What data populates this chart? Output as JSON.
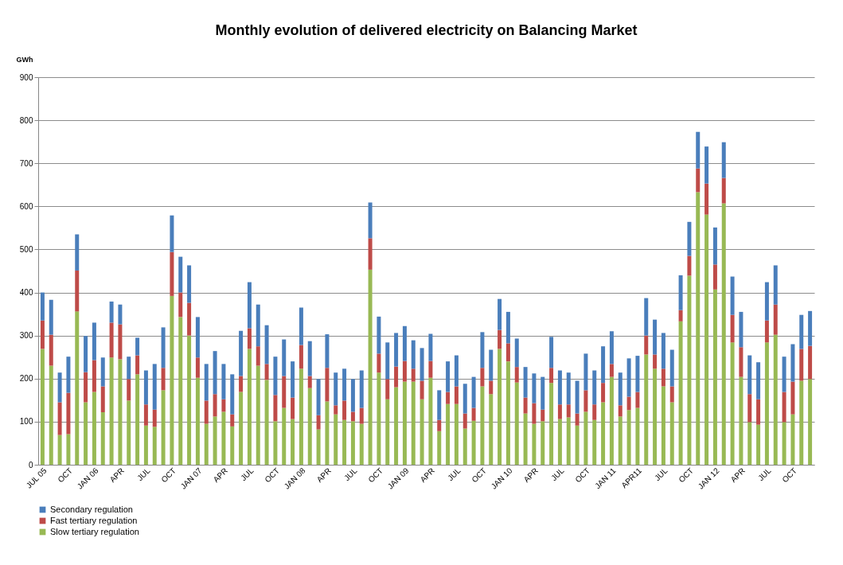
{
  "chart_data": {
    "type": "bar",
    "title": "Monthly evolution of delivered electricity on Balancing Market",
    "ylabel": "GWh",
    "stacked": true,
    "grid": "y",
    "legend": "bottom",
    "ylim": [
      0,
      900
    ],
    "yticks": [
      0,
      100,
      200,
      300,
      400,
      500,
      600,
      700,
      800,
      900
    ],
    "categories": [
      "JUL 05",
      null,
      null,
      "OCT",
      null,
      null,
      "JAN 06",
      null,
      null,
      "APR",
      null,
      null,
      "JUL",
      null,
      null,
      "OCT",
      null,
      null,
      "JAN 07",
      null,
      null,
      "APR",
      null,
      null,
      "JUL",
      null,
      null,
      "OCT",
      null,
      null,
      "JAN 08",
      null,
      null,
      "APR",
      null,
      null,
      "JUL",
      null,
      null,
      "OCT",
      null,
      null,
      "JAN 09",
      null,
      null,
      "APR",
      null,
      null,
      "JUL",
      null,
      null,
      "OCT",
      null,
      null,
      "JAN 10",
      null,
      null,
      "APR",
      null,
      null,
      "JUL",
      null,
      null,
      "OCT",
      null,
      null,
      "JAN 11",
      null,
      null,
      "APR11",
      null,
      null,
      "JUL",
      null,
      null,
      "OCT",
      null,
      null,
      "JAN 12",
      null,
      null,
      "APR",
      null,
      null,
      "JUL",
      null,
      null,
      "OCT",
      null,
      null
    ],
    "series": [
      {
        "name": "Slow tertiary regulation",
        "color": "#98b954",
        "values": [
          269,
          230,
          69,
          71,
          356,
          145,
          169,
          122,
          249,
          245,
          149,
          210,
          91,
          88,
          173,
          392,
          343,
          300,
          202,
          95,
          112,
          123,
          89,
          169,
          269,
          230,
          197,
          101,
          132,
          106,
          223,
          178,
          82,
          147,
          117,
          104,
          101,
          95,
          453,
          214,
          152,
          180,
          193,
          193,
          152,
          202,
          78,
          141,
          141,
          84,
          102,
          182,
          164,
          269,
          240,
          191,
          119,
          95,
          101,
          190,
          106,
          110,
          91,
          123,
          104,
          145,
          204,
          112,
          127,
          132,
          256,
          223,
          182,
          145,
          333,
          439,
          633,
          581,
          407,
          607,
          284,
          204,
          99,
          93,
          284,
          302,
          99,
          117,
          195,
          199
        ]
      },
      {
        "name": "Fast tertiary regulation",
        "color": "#be4b48",
        "values": [
          66,
          72,
          76,
          96,
          95,
          70,
          74,
          60,
          81,
          81,
          50,
          44,
          49,
          40,
          52,
          102,
          57,
          76,
          47,
          54,
          52,
          29,
          28,
          37,
          48,
          45,
          37,
          61,
          74,
          50,
          55,
          28,
          33,
          78,
          21,
          45,
          22,
          37,
          73,
          44,
          47,
          48,
          48,
          30,
          43,
          39,
          26,
          28,
          41,
          35,
          30,
          43,
          31,
          44,
          42,
          36,
          37,
          48,
          27,
          35,
          34,
          30,
          28,
          50,
          36,
          45,
          30,
          26,
          31,
          37,
          44,
          33,
          41,
          37,
          26,
          46,
          55,
          72,
          58,
          59,
          64,
          69,
          65,
          59,
          51,
          70,
          70,
          76,
          74,
          77
        ]
      },
      {
        "name": "Secondary regulation",
        "color": "#4a7ebb",
        "values": [
          65,
          81,
          69,
          84,
          84,
          84,
          87,
          67,
          49,
          46,
          52,
          41,
          79,
          106,
          94,
          85,
          83,
          87,
          94,
          85,
          100,
          82,
          93,
          105,
          107,
          97,
          90,
          89,
          85,
          84,
          87,
          81,
          84,
          78,
          76,
          74,
          76,
          87,
          83,
          86,
          85,
          78,
          81,
          66,
          76,
          63,
          69,
          71,
          72,
          69,
          72,
          83,
          72,
          72,
          73,
          66,
          71,
          69,
          76,
          72,
          79,
          74,
          76,
          85,
          79,
          85,
          76,
          76,
          89,
          84,
          87,
          81,
          83,
          85,
          81,
          79,
          85,
          86,
          86,
          83,
          89,
          82,
          90,
          86,
          89,
          91,
          82,
          87,
          79,
          81
        ]
      }
    ]
  }
}
